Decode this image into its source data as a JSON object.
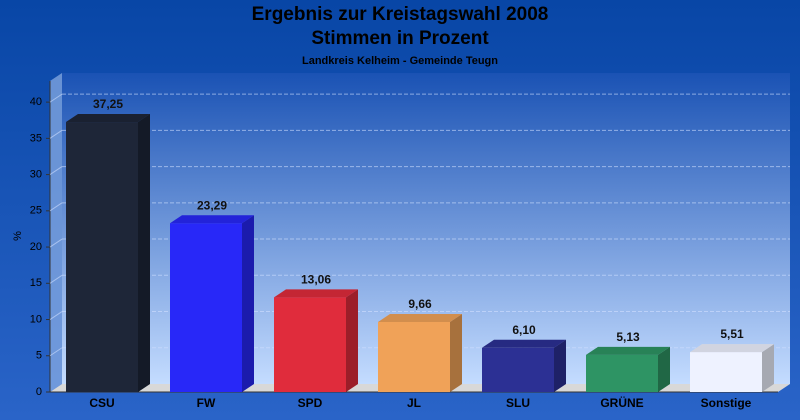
{
  "chart_data": {
    "type": "bar",
    "title": "Ergebnis zur Kreistagswahl 2008",
    "subtitle": "Stimmen in Prozent",
    "note": "Landkreis Kelheim - Gemeinde Teugn",
    "ylabel": "%",
    "categories": [
      "CSU",
      "FW",
      "SPD",
      "JL",
      "SLU",
      "GRÜNE",
      "Sonstige"
    ],
    "values": [
      37.25,
      23.29,
      13.06,
      9.66,
      6.1,
      5.13,
      5.51
    ],
    "value_labels": [
      "37,25",
      "23,29",
      "13,06",
      "9,66",
      "6,10",
      "5,13",
      "5,51"
    ],
    "colors": [
      "#1e2638",
      "#2828f8",
      "#e02c3c",
      "#f0a258",
      "#2c3094",
      "#2e9464",
      "#eef2ff"
    ],
    "ylim": [
      0,
      42.5
    ],
    "yticks": [
      0,
      5,
      10,
      15,
      20,
      25,
      30,
      35,
      40
    ],
    "grid": true
  }
}
